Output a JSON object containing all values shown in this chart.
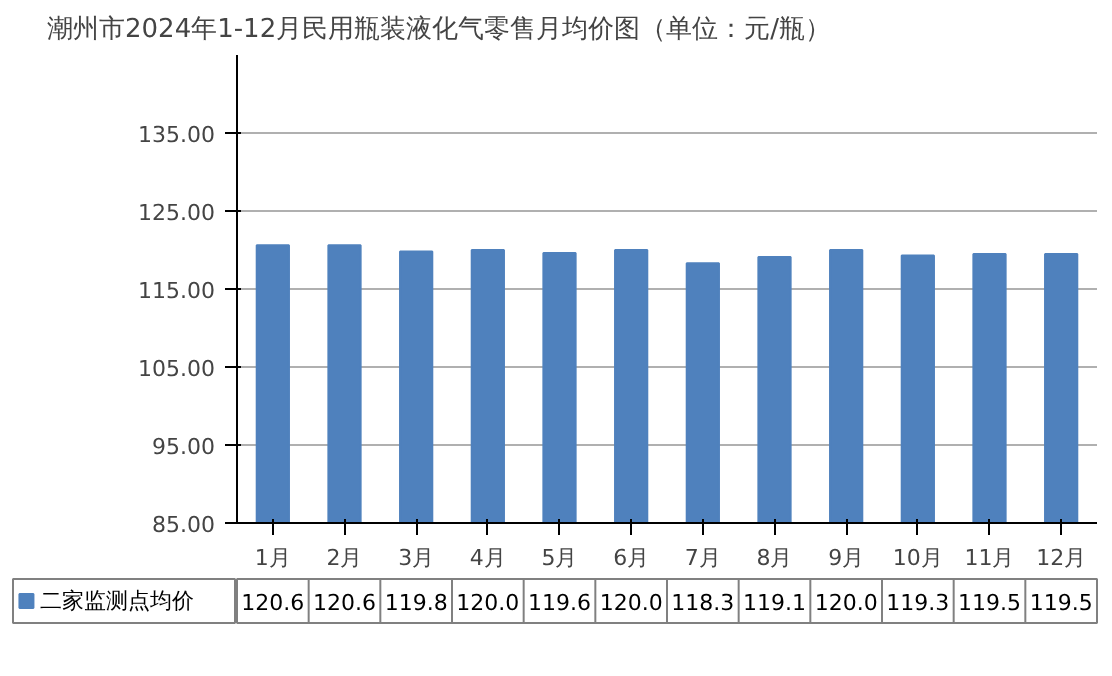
{
  "chart_data": {
    "type": "bar",
    "title": "潮州市2024年1-12月民用瓶装液化气零售月均价图（单位：元/瓶）",
    "categories": [
      "1月",
      "2月",
      "3月",
      "4月",
      "5月",
      "6月",
      "7月",
      "8月",
      "9月",
      "10月",
      "11月",
      "12月"
    ],
    "series": [
      {
        "name": "二家监测点均价",
        "color": "#4f81bd",
        "values": [
          120.6,
          120.6,
          119.8,
          120.0,
          119.6,
          120.0,
          118.3,
          119.1,
          120.0,
          119.3,
          119.5,
          119.5
        ],
        "value_labels": [
          "120.6",
          "120.6",
          "119.8",
          "120.0",
          "119.6",
          "120.0",
          "118.3",
          "119.1",
          "120.0",
          "119.3",
          "119.5",
          "119.5"
        ]
      }
    ],
    "ylim": [
      85,
      145
    ],
    "yticks": [
      {
        "value": 85,
        "label": "85.00"
      },
      {
        "value": 95,
        "label": "95.00"
      },
      {
        "value": 105,
        "label": "105.00"
      },
      {
        "value": 115,
        "label": "115.00"
      },
      {
        "value": 125,
        "label": "125.00"
      },
      {
        "value": 135,
        "label": "135.00"
      }
    ],
    "grid": "y",
    "legend": "bottom"
  }
}
